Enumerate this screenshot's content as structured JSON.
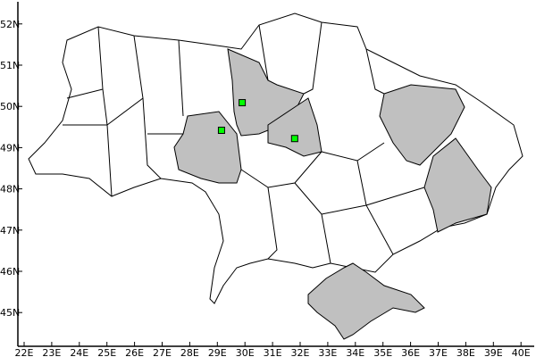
{
  "map": {
    "lon_ticks": [
      "22E",
      "23E",
      "24E",
      "25E",
      "26E",
      "27E",
      "28E",
      "29E",
      "30E",
      "31E",
      "32E",
      "33E",
      "34E",
      "35E",
      "36E",
      "37E",
      "38E",
      "39E",
      "40E"
    ],
    "lat_ticks": [
      "45N",
      "46N",
      "47N",
      "48N",
      "49N",
      "50N",
      "51N",
      "52N"
    ],
    "lon_range": [
      21.8,
      40.5
    ],
    "lat_range": [
      44.2,
      52.5
    ],
    "land_color": "#ffffff",
    "highlight_color": "#c0c0c0",
    "marker_color": "#00ff00",
    "highlighted_regions": [
      "Kyiv Oblast",
      "Cherkasy Oblast",
      "Vinnytsia Oblast",
      "Kharkiv Oblast",
      "Donetsk Oblast",
      "Crimea"
    ],
    "markers": [
      {
        "lon": 29.9,
        "lat": 50.09
      },
      {
        "lon": 29.15,
        "lat": 49.42
      },
      {
        "lon": 31.8,
        "lat": 49.22
      }
    ]
  }
}
